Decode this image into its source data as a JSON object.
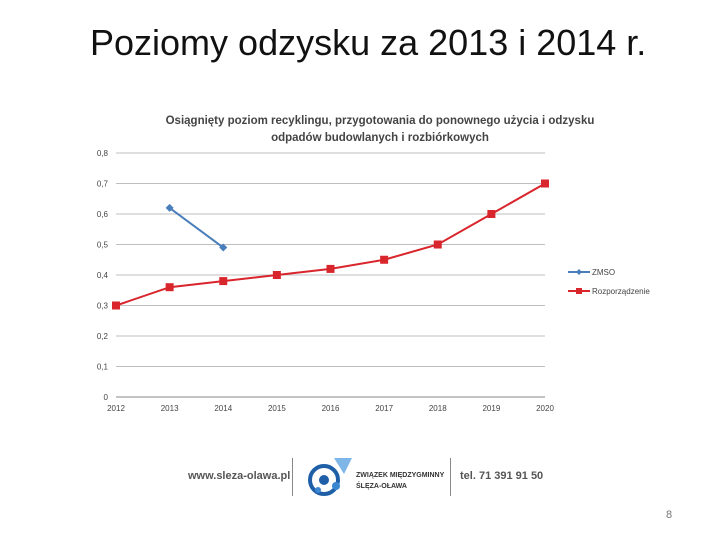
{
  "slide": {
    "title": "Poziomy odzysku za 2013 i 2014 r.",
    "page_number": "8"
  },
  "footer": {
    "website": "www.sleza-olawa.pl",
    "org_line1": "ZWIĄZEK MIĘDZYGMINNY",
    "org_line2": "ŚLĘZA-OŁAWA",
    "phone": "tel. 71 391 91 50",
    "logo_icon": "union-logo-icon"
  },
  "chart_data": {
    "type": "line",
    "title_line1": "Osiągnięty poziom recyklingu, przygotowania do ponownego użycia i odzysku",
    "title_line2": "odpadów budowlanych i rozbiórkowych",
    "categories": [
      "2012",
      "2013",
      "2014",
      "2015",
      "2016",
      "2017",
      "2018",
      "2019",
      "2020"
    ],
    "y_ticks": [
      "0",
      "0,1",
      "0,2",
      "0,3",
      "0,4",
      "0,5",
      "0,6",
      "0,7",
      "0,8"
    ],
    "ylim": [
      0,
      0.8
    ],
    "grid": true,
    "legend_position": "right",
    "series": [
      {
        "name": "ZMSO",
        "color": "#4a7ebb",
        "marker": "diamond",
        "values": [
          null,
          0.62,
          0.49,
          null,
          null,
          null,
          null,
          null,
          null
        ]
      },
      {
        "name": "Rozporządzenie",
        "color": "#d9252c",
        "marker": "square",
        "values": [
          0.3,
          0.36,
          0.38,
          0.4,
          0.42,
          0.45,
          0.5,
          0.6,
          0.7
        ]
      }
    ]
  }
}
